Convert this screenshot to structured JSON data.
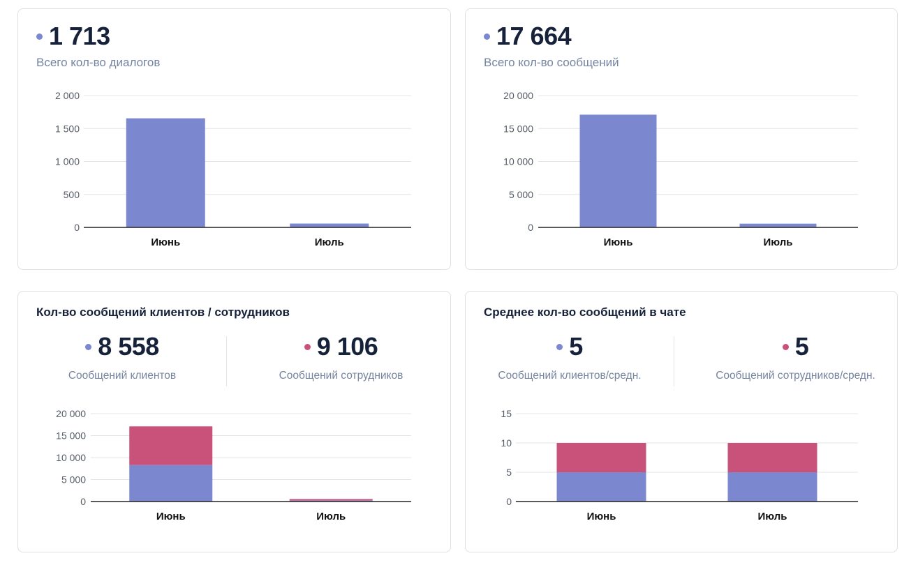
{
  "colors": {
    "clients": "#7b88cf",
    "staff": "#c9527b",
    "text_dark": "#16213a",
    "text_muted": "#7584a0"
  },
  "dialogs": {
    "value": "1 713",
    "label": "Всего кол-во диалогов",
    "icon": "dot-indicator",
    "chart_data": {
      "type": "bar",
      "categories": [
        "Июнь",
        "Июль"
      ],
      "values": [
        1655,
        58
      ],
      "yticks": [
        "0",
        "500",
        "1 000",
        "1 500",
        "2 000"
      ],
      "ylim": [
        0,
        2000
      ]
    }
  },
  "messages": {
    "value": "17 664",
    "label": "Всего кол-во сообщений",
    "chart_data": {
      "type": "bar",
      "categories": [
        "Июнь",
        "Июль"
      ],
      "values": [
        17100,
        564
      ],
      "yticks": [
        "0",
        "5 000",
        "10 000",
        "15 000",
        "20 000"
      ],
      "ylim": [
        0,
        20000
      ]
    }
  },
  "split": {
    "title": "Кол-во сообщений клиентов / сотрудников",
    "clients_value": "8 558",
    "clients_label": "Сообщений клиентов",
    "staff_value": "9 106",
    "staff_label": "Сообщений сотрудников",
    "chart_data": {
      "type": "bar",
      "stacked": true,
      "categories": [
        "Июнь",
        "Июль"
      ],
      "series": [
        {
          "key": "clients",
          "values": [
            8300,
            258
          ]
        },
        {
          "key": "staff",
          "values": [
            8800,
            306
          ]
        }
      ],
      "yticks": [
        "0",
        "5 000",
        "10 000",
        "15 000",
        "20 000"
      ],
      "ylim": [
        0,
        20000
      ]
    }
  },
  "avg": {
    "title": "Среднее кол-во сообщений в чате",
    "clients_value": "5",
    "clients_label": "Сообщений клиентов/средн.",
    "staff_value": "5",
    "staff_label": "Сообщений сотрудников/средн.",
    "chart_data": {
      "type": "bar",
      "stacked": true,
      "categories": [
        "Июнь",
        "Июль"
      ],
      "series": [
        {
          "key": "clients",
          "values": [
            5,
            5
          ]
        },
        {
          "key": "staff",
          "values": [
            5,
            5
          ]
        }
      ],
      "yticks": [
        "0",
        "5",
        "10",
        "15"
      ],
      "ylim": [
        0,
        15
      ]
    }
  }
}
